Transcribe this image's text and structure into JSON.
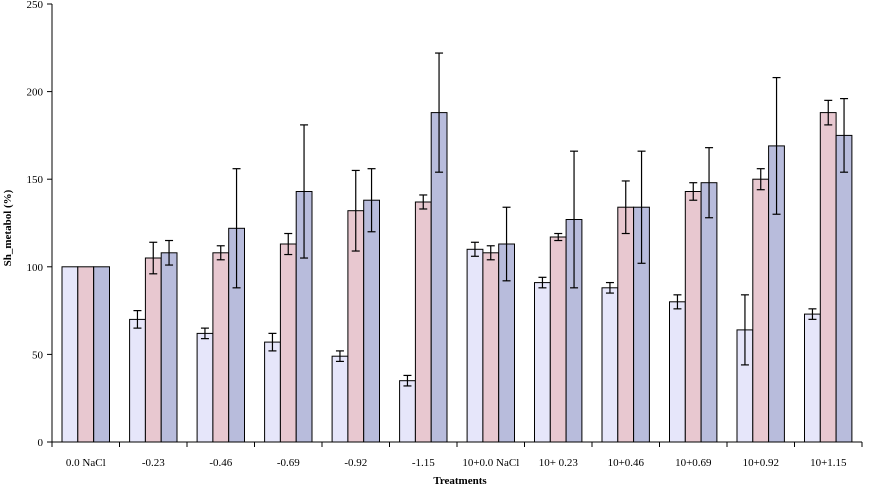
{
  "chart_data": {
    "type": "bar",
    "title": "",
    "xlabel": "Treatments",
    "ylabel": "Sh_metabol (%)",
    "ylim": [
      0,
      250
    ],
    "yticks": [
      0,
      50,
      100,
      150,
      200,
      250
    ],
    "grid": false,
    "legend": "none",
    "categories": [
      "0.0 NaCl",
      "-0.23",
      "-0.46",
      "-0.69",
      "-0.92",
      "-1.15",
      "10+0.0 NaCl",
      "10+ 0.23",
      "10+0.46",
      "10+0.69",
      "10+0.92",
      "10+1.15"
    ],
    "series": [
      {
        "color": "#e6e6fa",
        "values": [
          100,
          70,
          62,
          57,
          49,
          35,
          110,
          91,
          88,
          80,
          64,
          73
        ],
        "errors": [
          0,
          5,
          3,
          5,
          3,
          3,
          4,
          3,
          3,
          4,
          20,
          3
        ]
      },
      {
        "color": "#e8c8d0",
        "values": [
          100,
          105,
          108,
          113,
          132,
          137,
          108,
          117,
          134,
          143,
          150,
          188
        ],
        "errors": [
          0,
          9,
          4,
          6,
          23,
          4,
          4,
          2,
          15,
          5,
          6,
          7
        ]
      },
      {
        "color": "#b8bcdc",
        "values": [
          100,
          108,
          122,
          143,
          138,
          188,
          113,
          127,
          134,
          148,
          169,
          175
        ],
        "errors": [
          0,
          7,
          34,
          38,
          18,
          34,
          21,
          39,
          32,
          20,
          39,
          21
        ]
      }
    ]
  }
}
